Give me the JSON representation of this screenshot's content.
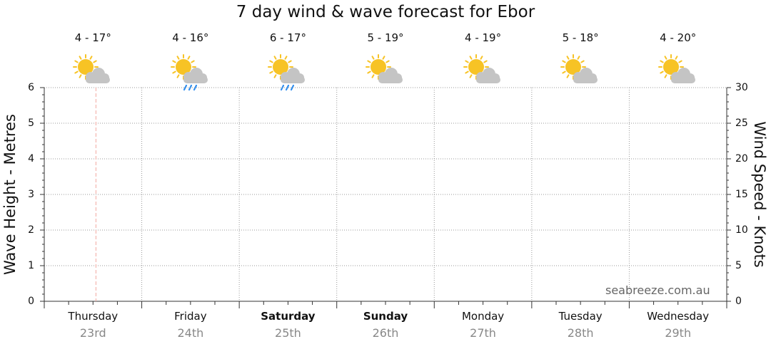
{
  "chart_data": {
    "type": "line",
    "title": "7 day wind & wave forecast for Ebor",
    "ylabel_left": "Wave Height - Metres",
    "ylabel_right": "Wind Speed - Knots",
    "y_left_range": [
      0,
      6
    ],
    "y_left_ticks": [
      "0",
      "1",
      "2",
      "3",
      "4",
      "5",
      "6"
    ],
    "y_right_range": [
      0,
      30
    ],
    "y_right_ticks": [
      "0",
      "5",
      "10",
      "15",
      "20",
      "25",
      "30"
    ],
    "grid": true,
    "days": [
      {
        "day": "Thursday",
        "date": "23rd",
        "temp": "4 - 17°",
        "icon": "sun-behind-cloud-icon",
        "bold": false
      },
      {
        "day": "Friday",
        "date": "24th",
        "temp": "4 - 16°",
        "icon": "sun-cloud-rain-icon",
        "bold": false
      },
      {
        "day": "Saturday",
        "date": "25th",
        "temp": "6 - 17°",
        "icon": "sun-cloud-rain-icon",
        "bold": true
      },
      {
        "day": "Sunday",
        "date": "26th",
        "temp": "5 - 19°",
        "icon": "sun-behind-cloud-icon",
        "bold": true
      },
      {
        "day": "Monday",
        "date": "27th",
        "temp": "4 - 19°",
        "icon": "sun-behind-cloud-icon",
        "bold": false
      },
      {
        "day": "Tuesday",
        "date": "28th",
        "temp": "5 - 18°",
        "icon": "sun-behind-cloud-icon",
        "bold": false
      },
      {
        "day": "Wednesday",
        "date": "29th",
        "temp": "4 - 20°",
        "icon": "sun-behind-cloud-icon",
        "bold": false
      }
    ],
    "current_time_marker": "Thursday",
    "series": []
  },
  "watermark": "seabreeze.com.au",
  "colors": {
    "grid": "#999999",
    "now_marker": "#f2a8a0",
    "sun": "#f7c325",
    "cloud": "#c4c4c4",
    "rain": "#2f8ff0",
    "date_text": "#888888"
  }
}
